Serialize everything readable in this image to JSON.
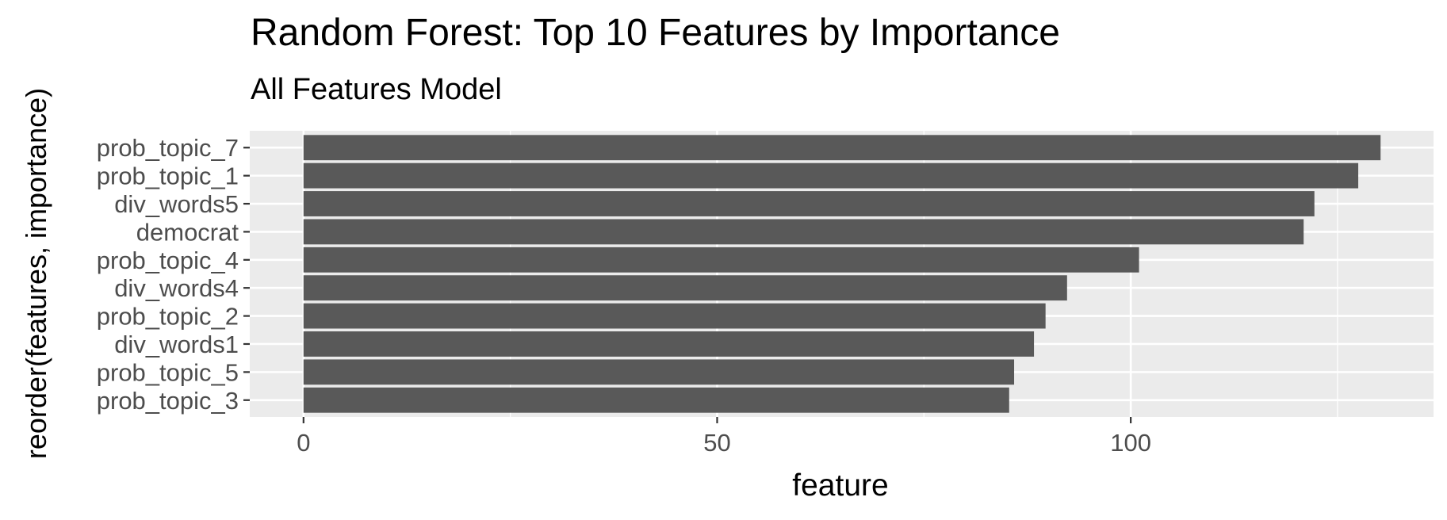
{
  "chart_data": {
    "type": "bar",
    "orientation": "horizontal",
    "title": "Random Forest: Top 10 Features by Importance",
    "subtitle": "All Features Model",
    "xlabel": "feature",
    "ylabel": "reorder(features, importance)",
    "categories": [
      "prob_topic_7",
      "prob_topic_1",
      "div_words5",
      "democrat",
      "prob_topic_4",
      "div_words4",
      "prob_topic_2",
      "div_words1",
      "prob_topic_5",
      "prob_topic_3"
    ],
    "values": [
      130.2,
      127.5,
      122.2,
      120.9,
      101.0,
      92.3,
      89.7,
      88.3,
      85.9,
      85.3
    ],
    "xlim": [
      -6.5,
      136.6
    ],
    "xticks": [
      0,
      50,
      100
    ],
    "xtick_labels": [
      "0",
      "50",
      "100"
    ],
    "grid": true,
    "colors": {
      "bar": "#595959",
      "panel": "#ebebeb",
      "grid": "#ffffff"
    }
  }
}
